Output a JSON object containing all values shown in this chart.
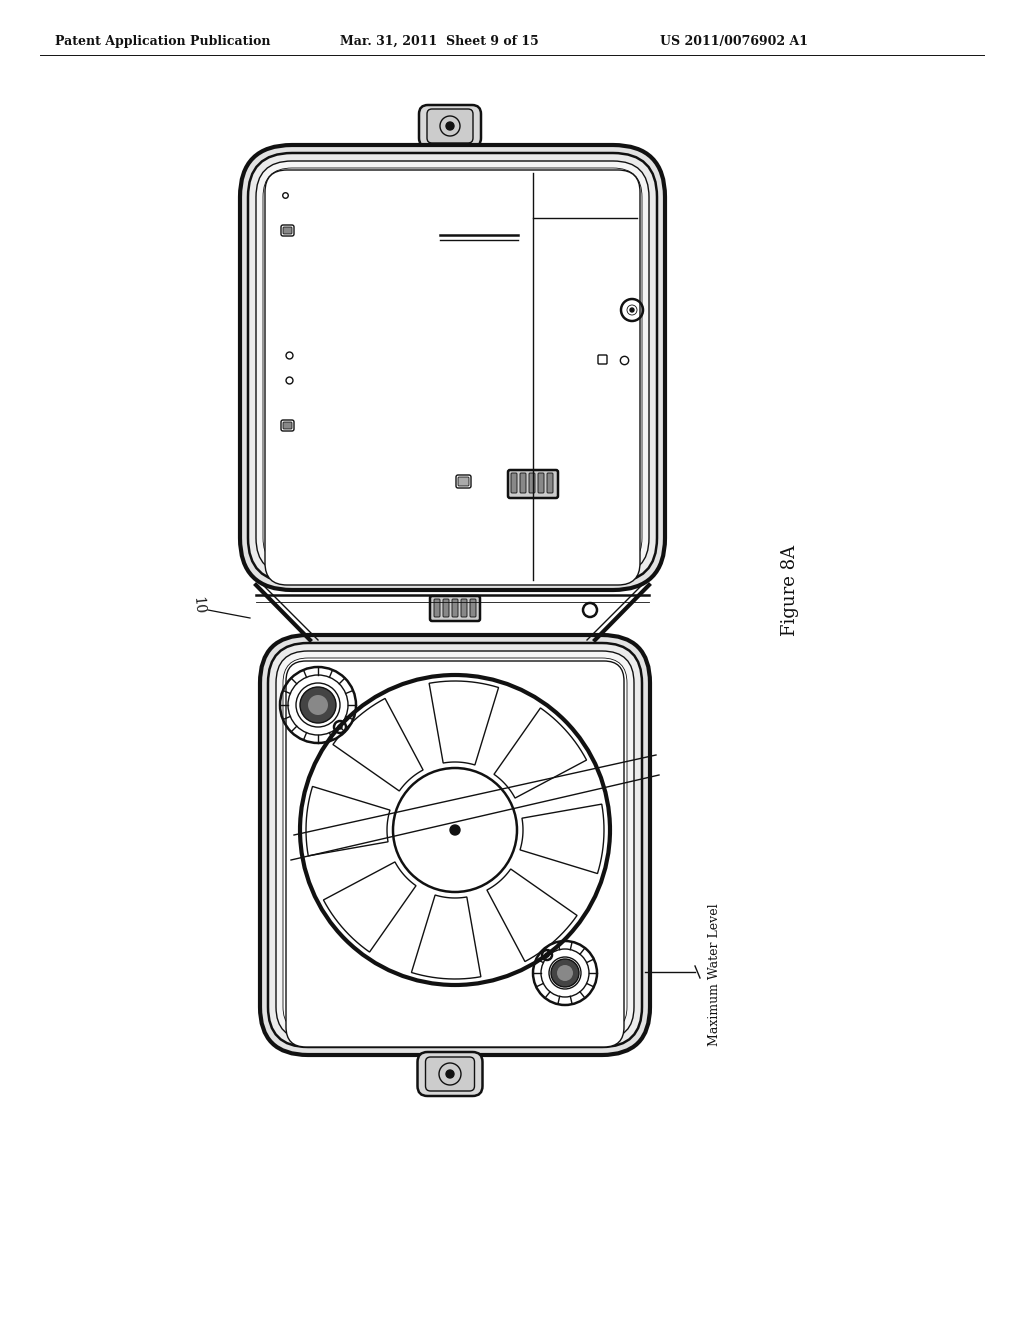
{
  "bg_color": "#ffffff",
  "line_color": "#111111",
  "header_left": "Patent Application Publication",
  "header_mid": "Mar. 31, 2011  Sheet 9 of 15",
  "header_right": "US 2011/0076902 A1",
  "figure_label": "Figure 8A",
  "part_label": "10",
  "water_level_label": "Maximum Water Level",
  "header_fontsize": 9,
  "label_fontsize": 9,
  "fig_label_fontsize": 13
}
